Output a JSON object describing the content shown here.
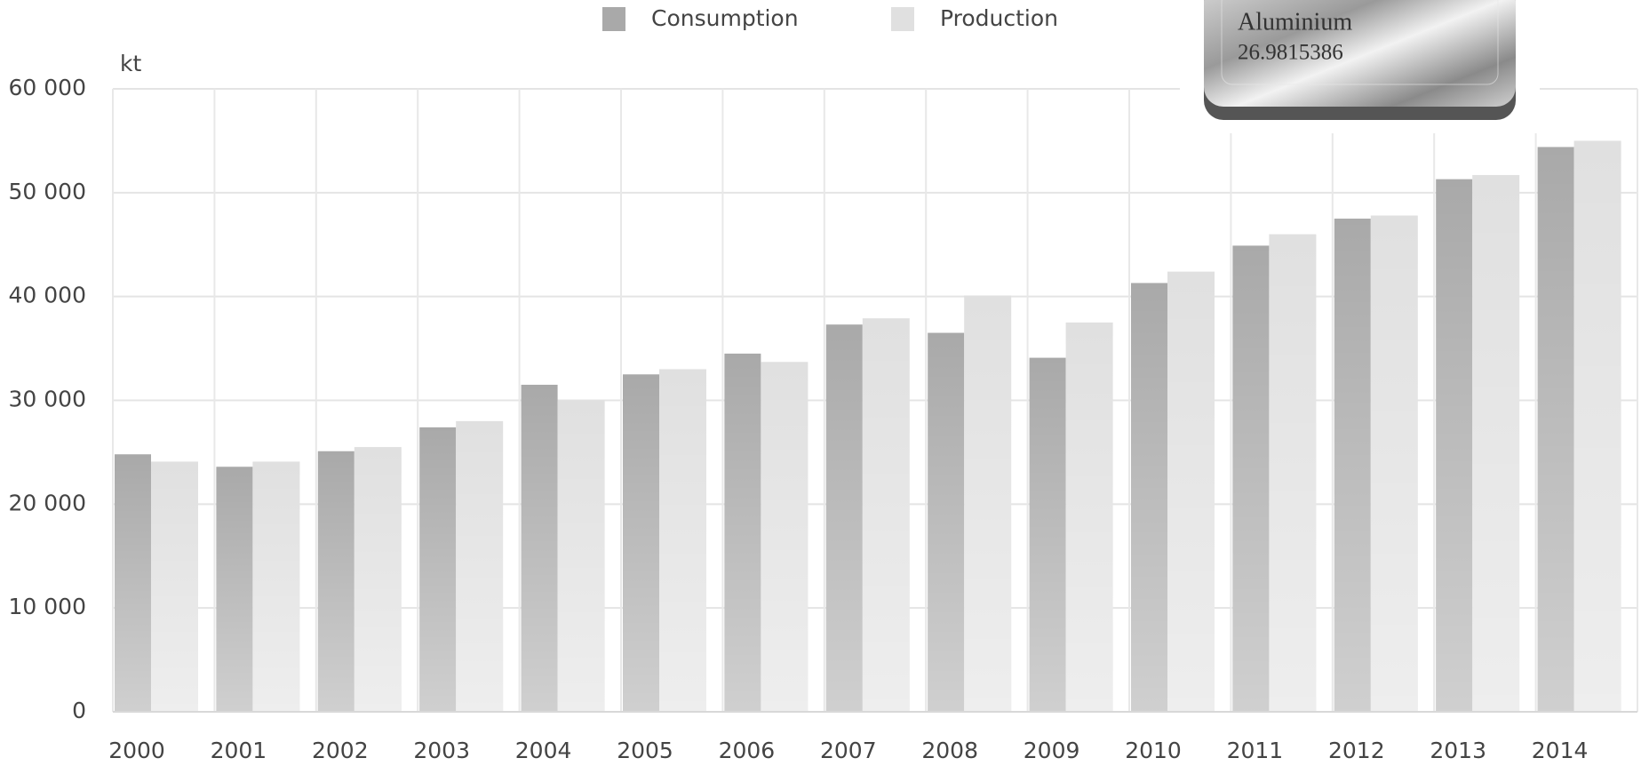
{
  "chart_data": {
    "type": "bar",
    "unit_label": "kt",
    "categories": [
      "2000",
      "2001",
      "2002",
      "2003",
      "2004",
      "2005",
      "2006",
      "2007",
      "2008",
      "2009",
      "2010",
      "2011",
      "2012",
      "2013",
      "2014"
    ],
    "series": [
      {
        "name": "Consumption",
        "color": "#a9a9a9",
        "values": [
          24800,
          23600,
          25100,
          27400,
          31500,
          32500,
          34500,
          37300,
          36500,
          34100,
          41300,
          44900,
          47500,
          51300,
          54400
        ]
      },
      {
        "name": "Production",
        "color": "#e0e0e0",
        "values": [
          24100,
          24100,
          25500,
          28000,
          30000,
          33000,
          33700,
          37900,
          40100,
          37500,
          42400,
          46000,
          47800,
          51700,
          55000
        ]
      }
    ],
    "ylim": [
      0,
      60000
    ],
    "yticks": [
      0,
      {
        "value": 10000,
        "label": "10 000"
      },
      {
        "value": 20000,
        "label": "20 000"
      },
      {
        "value": 30000,
        "label": "30 000"
      },
      {
        "value": 40000,
        "label": "40 000"
      },
      {
        "value": 50000,
        "label": "50 000"
      },
      {
        "value": 60000,
        "label": "60 000"
      }
    ],
    "grid": true
  },
  "badge": {
    "element": "Aluminium",
    "mass": "26.9815386"
  }
}
